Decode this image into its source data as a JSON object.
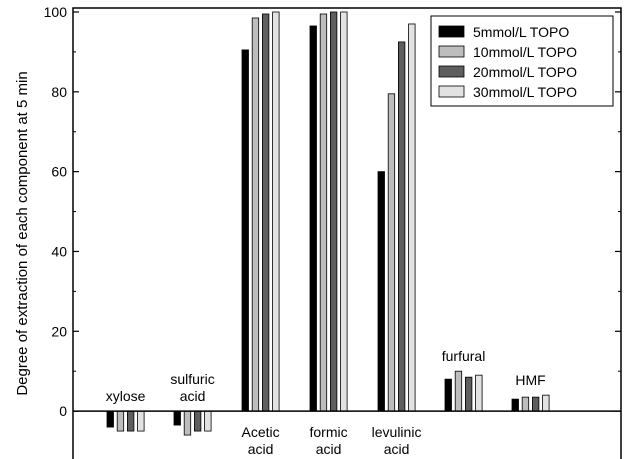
{
  "chart_data": {
    "type": "bar",
    "title": "",
    "xlabel": "",
    "ylabel": "Degree of extraction of each component at 5 min",
    "ylim": [
      -12,
      101
    ],
    "yticks": [
      0,
      20,
      40,
      60,
      80,
      100
    ],
    "ytick_labels": [
      "0",
      "20",
      "40",
      "60",
      "80",
      "100"
    ],
    "grid": false,
    "legend_position": "top-right",
    "categories": [
      {
        "name": "xylose",
        "label_lines": [
          "xylose"
        ],
        "label_position": "above"
      },
      {
        "name": "sulfuric acid",
        "label_lines": [
          "sulfuric",
          "acid"
        ],
        "label_position": "above"
      },
      {
        "name": "Acetic acid",
        "label_lines": [
          "Acetic",
          "acid"
        ],
        "label_position": "below"
      },
      {
        "name": "formic acid",
        "label_lines": [
          "formic",
          "acid"
        ],
        "label_position": "below"
      },
      {
        "name": "levulinic acid",
        "label_lines": [
          "levulinic",
          "acid"
        ],
        "label_position": "below"
      },
      {
        "name": "furfural",
        "label_lines": [
          "furfural"
        ],
        "label_position": "above"
      },
      {
        "name": "HMF",
        "label_lines": [
          "HMF"
        ],
        "label_position": "above"
      }
    ],
    "series": [
      {
        "name": "5mmol/L TOPO",
        "color": "#000000",
        "values": [
          -4,
          -3.5,
          90.5,
          96.5,
          60,
          8,
          3
        ]
      },
      {
        "name": "10mmol/L TOPO",
        "color": "#bdbdbd",
        "values": [
          -5,
          -6,
          98.5,
          99.5,
          79.5,
          10,
          3.5
        ]
      },
      {
        "name": "20mmol/L TOPO",
        "color": "#5e5e5e",
        "values": [
          -5,
          -5,
          99.5,
          100,
          92.5,
          8.5,
          3.5
        ]
      },
      {
        "name": "30mmol/L TOPO",
        "color": "#e2e2e2",
        "values": [
          -5,
          -5,
          100,
          100,
          97,
          9,
          4
        ]
      }
    ]
  }
}
